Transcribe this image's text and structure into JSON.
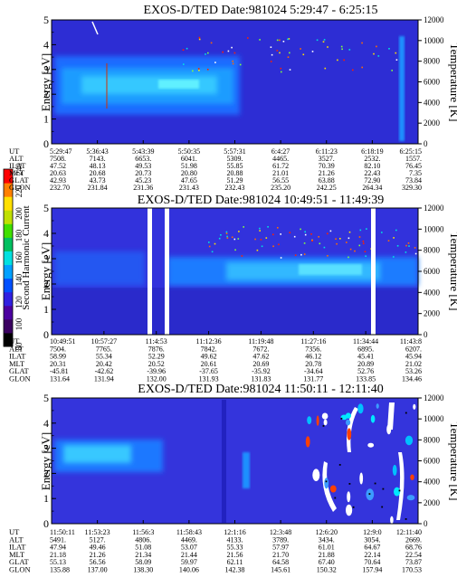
{
  "colorbar": {
    "label": "Second Harmonic Current",
    "ticks": [
      "80",
      "100",
      "120",
      "140",
      "160",
      "180",
      "200",
      "220",
      "240"
    ],
    "colors": [
      "#000000",
      "#3a0060",
      "#4b00a0",
      "#3020e0",
      "#0050ff",
      "#00a0ff",
      "#00e0e0",
      "#00c060",
      "#40e000",
      "#c0e000",
      "#ffe000",
      "#ff8000",
      "#ff0000"
    ]
  },
  "chart_data": [
    {
      "type": "heatmap",
      "title": "EXOS-D/TED   Date:981024   5:29:47 - 6:25:15",
      "ylabel": "Energy [eV]",
      "y2label": "Temperature [K]",
      "ylim": [
        0,
        5
      ],
      "y2lim": [
        0,
        12000
      ],
      "yticks": [
        "0",
        "1",
        "2",
        "3",
        "4",
        "5"
      ],
      "y2ticks": [
        "0",
        "2000",
        "4000",
        "6000",
        "8000",
        "10000",
        "12000"
      ],
      "rows": [
        {
          "label": "UT",
          "values": [
            "5:29:47",
            "5:36:43",
            "5:43:39",
            "5:50:35",
            "5:57:31",
            "6:4:27",
            "6:11:23",
            "6:18:19",
            "6:25:15"
          ]
        },
        {
          "label": "ALT",
          "values": [
            "7508.",
            "7143.",
            "6653.",
            "6041.",
            "5309.",
            "4465.",
            "3527.",
            "2532.",
            "1557."
          ]
        },
        {
          "label": "ILAT",
          "values": [
            "47.52",
            "48.13",
            "49.53",
            "51.98",
            "55.85",
            "61.72",
            "70.39",
            "82.10",
            "76.45"
          ]
        },
        {
          "label": "MLT",
          "values": [
            "20.63",
            "20.68",
            "20.73",
            "20.80",
            "20.88",
            "21.01",
            "21.26",
            "22.43",
            "7.35"
          ]
        },
        {
          "label": "GLAT",
          "values": [
            "42.93",
            "43.73",
            "45.23",
            "47.65",
            "51.29",
            "56.55",
            "63.88",
            "72.90",
            "73.84"
          ]
        },
        {
          "label": "GLON",
          "values": [
            "232.70",
            "231.84",
            "231.36",
            "231.43",
            "232.43",
            "235.20",
            "242.25",
            "264.34",
            "329.30"
          ]
        }
      ]
    },
    {
      "type": "heatmap",
      "title": "EXOS-D/TED   Date:981024   10:49:51 - 11:49:39",
      "ylabel": "Energy [eV]",
      "y2label": "Temperature [K]",
      "ylim": [
        0,
        5
      ],
      "y2lim": [
        0,
        12000
      ],
      "yticks": [
        "0",
        "1",
        "2",
        "3",
        "4",
        "5"
      ],
      "y2ticks": [
        "0",
        "2000",
        "4000",
        "6000",
        "8000",
        "10000",
        "12000"
      ],
      "rows": [
        {
          "label": "UT",
          "values": [
            "10:49:51",
            "10:57:27",
            "11:4:53",
            "11:12:36",
            "11:19:48",
            "11:27:16",
            "11:34:44",
            "11:43:8"
          ]
        },
        {
          "label": "ALT",
          "values": [
            "7504.",
            "7765.",
            "7876.",
            "7842.",
            "7672.",
            "7356.",
            "6895.",
            "6207."
          ]
        },
        {
          "label": "ILAT",
          "values": [
            "58.99",
            "55.34",
            "52.29",
            "49.62",
            "47.62",
            "46.12",
            "45.41",
            "45.94"
          ]
        },
        {
          "label": "MLT",
          "values": [
            "20.31",
            "20.42",
            "20.52",
            "20.61",
            "20.69",
            "20.78",
            "20.89",
            "21.02"
          ]
        },
        {
          "label": "GLAT",
          "values": [
            "-45.81",
            "-42.62",
            "-39.96",
            "-37.65",
            "-35.92",
            "-34.64",
            "52.76",
            "53.26"
          ]
        },
        {
          "label": "GLON",
          "values": [
            "131.64",
            "131.94",
            "132.00",
            "131.93",
            "131.83",
            "131.77",
            "133.85",
            "134.46"
          ]
        }
      ]
    },
    {
      "type": "heatmap",
      "title": "EXOS-D/TED   Date:981024   11:50:11 - 12:11:40",
      "ylabel": "Energy [eV]",
      "y2label": "Temperature [K]",
      "ylim": [
        0,
        5
      ],
      "y2lim": [
        0,
        12000
      ],
      "yticks": [
        "0",
        "1",
        "2",
        "3",
        "4",
        "5"
      ],
      "y2ticks": [
        "0",
        "2000",
        "4000",
        "6000",
        "8000",
        "10000",
        "12000"
      ],
      "rows": [
        {
          "label": "UT",
          "values": [
            "11:50:11",
            "11:53:23",
            "11:56:3",
            "11:58:43",
            "12:1:16",
            "12:3:48",
            "12:6:20",
            "12:9:0",
            "12:11:40"
          ]
        },
        {
          "label": "ALT",
          "values": [
            "5491.",
            "5127.",
            "4806.",
            "4469.",
            "4133.",
            "3789.",
            "3434.",
            "3054.",
            "2669."
          ]
        },
        {
          "label": "ILAT",
          "values": [
            "47.94",
            "49.46",
            "51.08",
            "53.07",
            "55.33",
            "57.97",
            "61.01",
            "64.67",
            "68.76"
          ]
        },
        {
          "label": "MLT",
          "values": [
            "21.18",
            "21.26",
            "21.34",
            "21.44",
            "21.56",
            "21.70",
            "21.88",
            "22.14",
            "22.54"
          ]
        },
        {
          "label": "GLAT",
          "values": [
            "55.13",
            "56.56",
            "58.09",
            "59.97",
            "62.11",
            "64.58",
            "67.40",
            "70.64",
            "73.87"
          ]
        },
        {
          "label": "GLON",
          "values": [
            "135.88",
            "137.00",
            "138.30",
            "140.06",
            "142.38",
            "145.61",
            "150.32",
            "157.94",
            "170.53"
          ]
        }
      ]
    }
  ]
}
